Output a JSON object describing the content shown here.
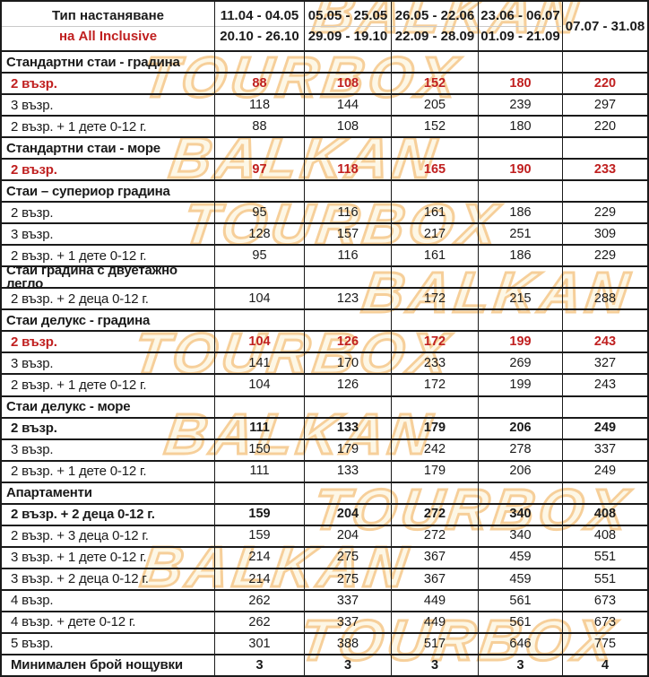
{
  "watermark": {
    "line1": "BALKAN",
    "line2": "TOURBOX"
  },
  "colors": {
    "accent_red": "#c02020",
    "border": "#1a1a1a",
    "watermark_fill": "#fdf2d2",
    "watermark_stroke": "#f0a848"
  },
  "header": {
    "title_line1": "Тип настаняване",
    "title_line2": "на All Inclusive",
    "periods": [
      {
        "line1": "11.04 - 04.05",
        "line2": "20.10 - 26.10"
      },
      {
        "line1": "05.05 - 25.05",
        "line2": "29.09 - 19.10"
      },
      {
        "line1": "26.05 - 22.06",
        "line2": "22.09 - 28.09"
      },
      {
        "line1": "23.06 - 06.07",
        "line2": "01.09 - 21.09"
      },
      {
        "line1": "07.07 - 31.08",
        "line2": ""
      }
    ]
  },
  "table": {
    "rows": [
      {
        "type": "section",
        "label": "Стандартни стаи - градина"
      },
      {
        "type": "data",
        "style": "red",
        "label": "2 възр.",
        "values": [
          "88",
          "108",
          "152",
          "180",
          "220"
        ]
      },
      {
        "type": "data",
        "label": "3 възр.",
        "values": [
          "118",
          "144",
          "205",
          "239",
          "297"
        ]
      },
      {
        "type": "data",
        "label": "2 възр. + 1 дете 0-12 г.",
        "values": [
          "88",
          "108",
          "152",
          "180",
          "220"
        ]
      },
      {
        "type": "section",
        "label": "Стандартни стаи - море"
      },
      {
        "type": "data",
        "style": "red",
        "label": "2 възр.",
        "values": [
          "97",
          "118",
          "165",
          "190",
          "233"
        ]
      },
      {
        "type": "section",
        "label": "Стаи – супериор градина"
      },
      {
        "type": "data",
        "label": "2 възр.",
        "values": [
          "95",
          "116",
          "161",
          "186",
          "229"
        ]
      },
      {
        "type": "data",
        "label": "3 възр.",
        "values": [
          "128",
          "157",
          "217",
          "251",
          "309"
        ]
      },
      {
        "type": "data",
        "label": "2 възр. + 1 дете 0-12 г.",
        "values": [
          "95",
          "116",
          "161",
          "186",
          "229"
        ]
      },
      {
        "type": "section",
        "label": "Стаи градина с двуетажно легло"
      },
      {
        "type": "data",
        "label": "2 възр. + 2 деца 0-12 г.",
        "values": [
          "104",
          "123",
          "172",
          "215",
          "288"
        ]
      },
      {
        "type": "section",
        "label": "Стаи делукс - градина"
      },
      {
        "type": "data",
        "style": "red",
        "label": "2 възр.",
        "values": [
          "104",
          "126",
          "172",
          "199",
          "243"
        ]
      },
      {
        "type": "data",
        "label": "3 възр.",
        "values": [
          "141",
          "170",
          "233",
          "269",
          "327"
        ]
      },
      {
        "type": "data",
        "label": "2 възр. + 1 дете 0-12 г.",
        "values": [
          "104",
          "126",
          "172",
          "199",
          "243"
        ]
      },
      {
        "type": "section",
        "label": "Стаи делукс - море"
      },
      {
        "type": "data",
        "style": "bold",
        "label": "2 възр.",
        "values": [
          "111",
          "133",
          "179",
          "206",
          "249"
        ]
      },
      {
        "type": "data",
        "label": "3 възр.",
        "values": [
          "150",
          "179",
          "242",
          "278",
          "337"
        ]
      },
      {
        "type": "data",
        "label": "2 възр. + 1 дете 0-12 г.",
        "values": [
          "111",
          "133",
          "179",
          "206",
          "249"
        ]
      },
      {
        "type": "section",
        "label": "Апартаменти"
      },
      {
        "type": "data",
        "style": "bold",
        "label": "2 възр. + 2 деца 0-12 г.",
        "values": [
          "159",
          "204",
          "272",
          "340",
          "408"
        ]
      },
      {
        "type": "data",
        "label": "2 възр. + 3 деца 0-12 г.",
        "values": [
          "159",
          "204",
          "272",
          "340",
          "408"
        ]
      },
      {
        "type": "data",
        "label": "3 възр. + 1 дете 0-12 г.",
        "values": [
          "214",
          "275",
          "367",
          "459",
          "551"
        ]
      },
      {
        "type": "data",
        "label": "3 възр. + 2 деца 0-12 г.",
        "values": [
          "214",
          "275",
          "367",
          "459",
          "551"
        ]
      },
      {
        "type": "data",
        "label": "4 възр.",
        "values": [
          "262",
          "337",
          "449",
          "561",
          "673"
        ]
      },
      {
        "type": "data",
        "label": "4 възр. + дете 0-12 г.",
        "values": [
          "262",
          "337",
          "449",
          "561",
          "673"
        ]
      },
      {
        "type": "data",
        "label": "5 възр.",
        "values": [
          "301",
          "388",
          "517",
          "646",
          "775"
        ]
      },
      {
        "type": "data",
        "style": "bold",
        "label": "Минимален брой нощувки",
        "values": [
          "3",
          "3",
          "3",
          "3",
          "4"
        ]
      }
    ]
  }
}
